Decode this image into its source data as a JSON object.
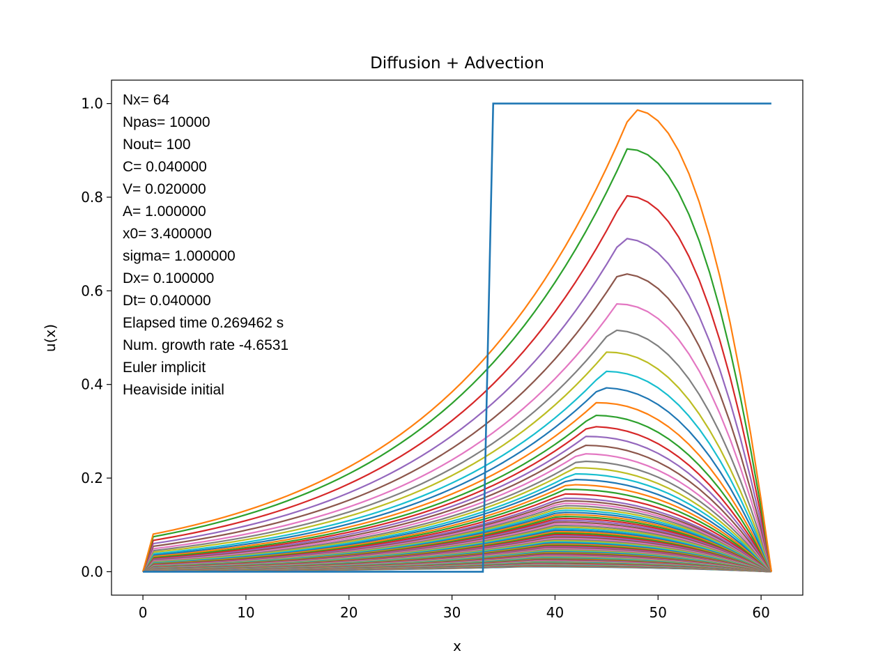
{
  "chart_data": {
    "type": "line",
    "title": "Diffusion + Advection",
    "xlabel": "x",
    "ylabel": "u(x)",
    "xlim": [
      -3.05,
      64.05
    ],
    "ylim": [
      -0.05,
      1.05
    ],
    "xticks": [
      0,
      10,
      20,
      30,
      40,
      50,
      60
    ],
    "yticks": [
      0.0,
      0.2,
      0.4,
      0.6,
      0.8,
      1.0
    ],
    "grid": false,
    "legend": "none",
    "n_profiles": 101,
    "x_range": [
      0,
      61
    ],
    "annotation_lines": [
      "Nx= 64",
      "Npas= 10000",
      "Nout= 100",
      "C= 0.040000",
      "V= 0.020000",
      "A= 1.000000",
      "x0= 3.400000",
      "sigma= 1.000000",
      "Dx= 0.100000",
      "Dt= 0.040000",
      "Elapsed time 0.269462 s",
      "Num. growth rate -4.6531",
      "Euler implicit",
      "Heaviside initial"
    ],
    "initial_condition": {
      "x": [
        0,
        33,
        34,
        61
      ],
      "y": [
        0,
        0,
        1,
        1
      ]
    },
    "profile_peaks": [
      {
        "x": 47.5,
        "y": 0.987
      },
      {
        "x": 47.0,
        "y": 0.903
      },
      {
        "x": 46.8,
        "y": 0.803
      },
      {
        "x": 46.5,
        "y": 0.712
      },
      {
        "x": 46.2,
        "y": 0.637
      },
      {
        "x": 46.0,
        "y": 0.572
      },
      {
        "x": 45.5,
        "y": 0.516
      },
      {
        "x": 45.0,
        "y": 0.469
      },
      {
        "x": 44.8,
        "y": 0.428
      },
      {
        "x": 44.4,
        "y": 0.393
      },
      {
        "x": 44.0,
        "y": 0.361
      },
      {
        "x": 43.7,
        "y": 0.334
      },
      {
        "x": 43.3,
        "y": 0.31
      },
      {
        "x": 43.0,
        "y": 0.289
      },
      {
        "x": 42.7,
        "y": 0.27
      },
      {
        "x": 42.4,
        "y": 0.252
      },
      {
        "x": 42.2,
        "y": 0.236
      },
      {
        "x": 41.9,
        "y": 0.222
      },
      {
        "x": 41.7,
        "y": 0.209
      },
      {
        "x": 41.4,
        "y": 0.197
      },
      {
        "x": 41.2,
        "y": 0.186
      },
      {
        "x": 41.0,
        "y": 0.176
      },
      {
        "x": 40.8,
        "y": 0.166
      },
      {
        "x": 40.6,
        "y": 0.157
      }
    ],
    "colors": [
      "#1f77b4",
      "#ff7f0e",
      "#2ca02c",
      "#d62728",
      "#9467bd",
      "#8c564b",
      "#e377c2",
      "#7f7f7f",
      "#bcbd22",
      "#17becf"
    ]
  }
}
